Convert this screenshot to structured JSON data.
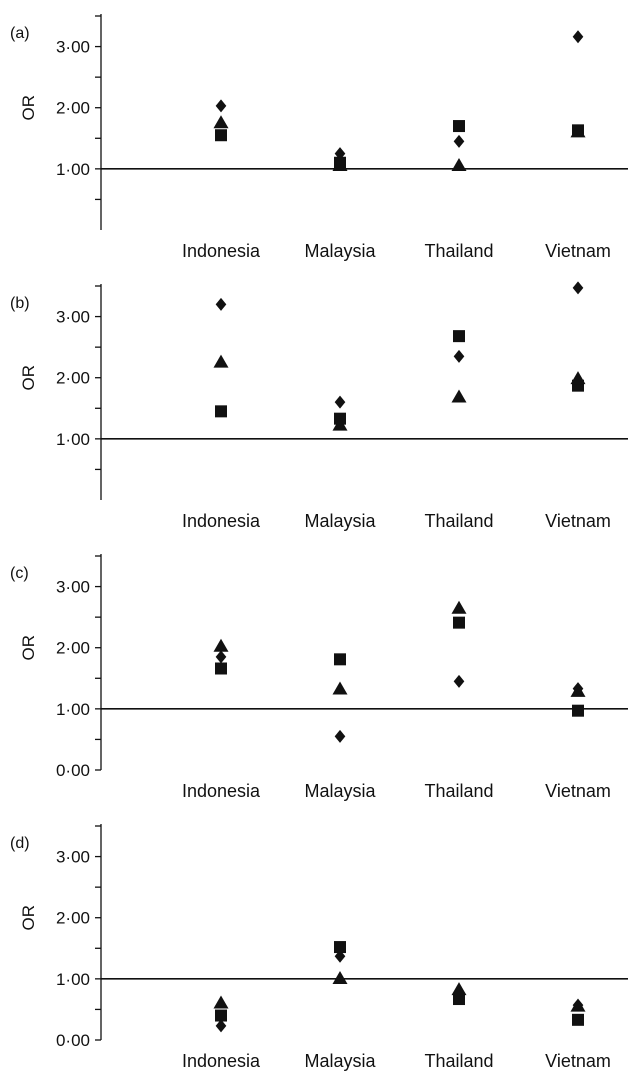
{
  "colors": {
    "marker": "#111111",
    "axis": "#111111",
    "reference_line": "#111111"
  },
  "chart_data": [
    {
      "type": "scatter",
      "panel_label": "(a)",
      "categories": [
        "Indonesia",
        "Malaysia",
        "Thailand",
        "Vietnam"
      ],
      "ylabel": "OR",
      "ylim": [
        0.0,
        3.5
      ],
      "yticks": [
        0.5,
        1.0,
        1.5,
        2.0,
        2.5,
        3.0,
        3.5
      ],
      "ytick_labels": {
        "1.0": "1·00",
        "2.0": "2·00",
        "3.0": "3·00"
      },
      "reference_line": 1.0,
      "series": [
        {
          "marker": "diamond",
          "values": [
            2.03,
            1.25,
            1.45,
            3.16
          ]
        },
        {
          "marker": "triangle",
          "values": [
            1.75,
            1.05,
            1.05,
            1.6
          ]
        },
        {
          "marker": "square",
          "values": [
            1.55,
            1.1,
            1.7,
            1.63
          ]
        }
      ]
    },
    {
      "type": "scatter",
      "panel_label": "(b)",
      "categories": [
        "Indonesia",
        "Malaysia",
        "Thailand",
        "Vietnam"
      ],
      "ylabel": "OR",
      "ylim": [
        0.0,
        3.5
      ],
      "yticks": [
        0.5,
        1.0,
        1.5,
        2.0,
        2.5,
        3.0,
        3.5
      ],
      "ytick_labels": {
        "1.0": "1·00",
        "2.0": "2·00",
        "3.0": "3·00"
      },
      "reference_line": 1.0,
      "series": [
        {
          "marker": "diamond",
          "values": [
            3.2,
            1.6,
            2.35,
            3.47
          ]
        },
        {
          "marker": "triangle",
          "values": [
            2.25,
            1.22,
            1.68,
            1.98
          ]
        },
        {
          "marker": "square",
          "values": [
            1.45,
            1.33,
            2.68,
            1.87
          ]
        }
      ]
    },
    {
      "type": "scatter",
      "panel_label": "(c)",
      "categories": [
        "Indonesia",
        "Malaysia",
        "Thailand",
        "Vietnam"
      ],
      "ylabel": "OR",
      "ylim": [
        0.0,
        3.5
      ],
      "yticks": [
        0.0,
        0.5,
        1.0,
        1.5,
        2.0,
        2.5,
        3.0,
        3.5
      ],
      "ytick_labels": {
        "0.0": "0·00",
        "1.0": "1·00",
        "2.0": "2·00",
        "3.0": "3·00"
      },
      "reference_line": 1.0,
      "series": [
        {
          "marker": "diamond",
          "values": [
            1.85,
            0.55,
            1.45,
            1.33
          ]
        },
        {
          "marker": "triangle",
          "values": [
            2.02,
            1.32,
            2.64,
            1.28
          ]
        },
        {
          "marker": "square",
          "values": [
            1.66,
            1.81,
            2.41,
            0.97
          ]
        }
      ]
    },
    {
      "type": "scatter",
      "panel_label": "(d)",
      "categories": [
        "Indonesia",
        "Malaysia",
        "Thailand",
        "Vietnam"
      ],
      "ylabel": "OR",
      "ylim": [
        0.0,
        3.5
      ],
      "yticks": [
        0.0,
        0.5,
        1.0,
        1.5,
        2.0,
        2.5,
        3.0,
        3.5
      ],
      "ytick_labels": {
        "0.0": "0·00",
        "1.0": "1·00",
        "2.0": "2·00",
        "3.0": "3·00"
      },
      "reference_line": 1.0,
      "series": [
        {
          "marker": "diamond",
          "values": [
            0.23,
            1.37,
            0.77,
            0.57
          ]
        },
        {
          "marker": "triangle",
          "values": [
            0.6,
            1.0,
            0.82,
            0.55
          ]
        },
        {
          "marker": "square",
          "values": [
            0.4,
            1.52,
            0.67,
            0.33
          ]
        }
      ]
    }
  ]
}
